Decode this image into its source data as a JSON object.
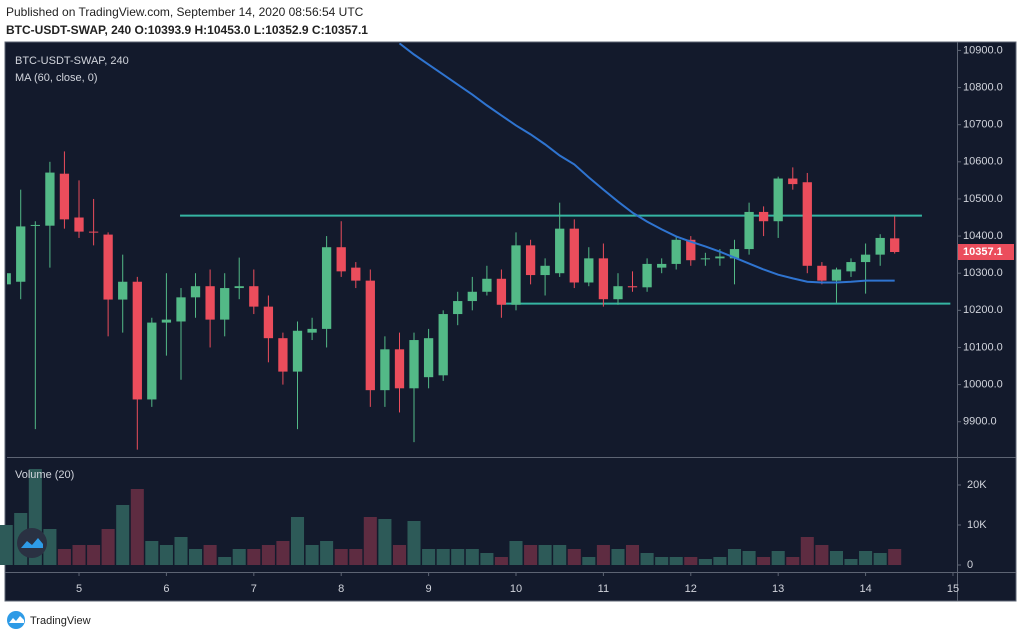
{
  "header": {
    "published": "Published on TradingView.com, September 14, 2020 08:56:54 UTC",
    "symbol_line": "BTC-USDT-SWAP, 240 O:10393.9 H:10453.0 L:10352.9 C:10357.1"
  },
  "chart_data": {
    "type": "candlestick",
    "title": "BTC-USDT-SWAP, 240",
    "x": [
      4.167,
      4.333,
      4.5,
      4.667,
      4.833,
      5,
      5.167,
      5.333,
      5.5,
      5.667,
      5.833,
      6,
      6.167,
      6.333,
      6.5,
      6.667,
      6.833,
      7,
      7.167,
      7.333,
      7.5,
      7.667,
      7.833,
      8,
      8.167,
      8.333,
      8.5,
      8.667,
      8.833,
      9,
      9.167,
      9.333,
      9.5,
      9.667,
      9.833,
      10,
      10.167,
      10.333,
      10.5,
      10.667,
      10.833,
      11,
      11.167,
      11.333,
      11.5,
      11.667,
      11.833,
      12,
      12.167,
      12.333,
      12.5,
      12.667,
      12.833,
      13,
      13.167,
      13.333,
      13.5,
      13.667,
      13.833,
      14,
      14.167,
      14.333
    ],
    "open": [
      10270,
      10277,
      10428,
      10428,
      10568,
      10450,
      10412,
      10404,
      10229,
      10277,
      9960,
      10167,
      10170,
      10235,
      10265,
      10175,
      10260,
      10265,
      10210,
      10125,
      10035,
      10140,
      10150,
      10370,
      10315,
      10280,
      9985,
      10095,
      9990,
      10020,
      10025,
      10190,
      10225,
      10250,
      10285,
      10215,
      10375,
      10295,
      10300,
      10420,
      10275,
      10340,
      10230,
      10265,
      10262,
      10315,
      10325,
      10390,
      10338,
      10340,
      10340,
      10365,
      10465,
      10440,
      10555,
      10545,
      10320,
      10280,
      10305,
      10330,
      10350,
      10393.9
    ],
    "high": [
      10310,
      10525,
      10440,
      10600,
      10628,
      10550,
      10500,
      10410,
      10350,
      10290,
      10180,
      10300,
      10260,
      10300,
      10310,
      10300,
      10342,
      10310,
      10240,
      10140,
      10170,
      10180,
      10400,
      10440,
      10330,
      10310,
      10130,
      10140,
      10140,
      10150,
      10200,
      10250,
      10290,
      10320,
      10310,
      10410,
      10390,
      10340,
      10490,
      10445,
      10370,
      10380,
      10300,
      10305,
      10340,
      10340,
      10400,
      10400,
      10355,
      10365,
      10390,
      10490,
      10480,
      10560,
      10585,
      10570,
      10330,
      10315,
      10340,
      10380,
      10405,
      10453.0
    ],
    "low": [
      10260,
      10230,
      9880,
      10315,
      10420,
      10395,
      10375,
      10130,
      10140,
      9825,
      9940,
      10078,
      10013,
      10180,
      10100,
      10130,
      10230,
      10190,
      10060,
      10000,
      9880,
      10120,
      10100,
      10290,
      10260,
      9940,
      9940,
      9925,
      9845,
      9990,
      10010,
      10160,
      10200,
      10240,
      10180,
      10200,
      10270,
      10240,
      10290,
      10260,
      10265,
      10210,
      10215,
      10250,
      10250,
      10300,
      10310,
      10320,
      10320,
      10320,
      10270,
      10350,
      10400,
      10395,
      10525,
      10300,
      10270,
      10220,
      10290,
      10245,
      10320,
      10352.9
    ],
    "close": [
      10300,
      10426,
      10430,
      10571,
      10445,
      10412,
      10410,
      10229,
      10277,
      9960,
      10167,
      10175,
      10235,
      10265,
      10175,
      10260,
      10265,
      10210,
      10125,
      10035,
      10145,
      10150,
      10370,
      10305,
      10280,
      9985,
      10095,
      9990,
      10120,
      10125,
      10190,
      10225,
      10250,
      10285,
      10215,
      10375,
      10295,
      10320,
      10420,
      10275,
      10340,
      10230,
      10265,
      10262,
      10325,
      10325,
      10390,
      10335,
      10340,
      10345,
      10365,
      10465,
      10440,
      10555,
      10540,
      10320,
      10280,
      10310,
      10330,
      10350,
      10395,
      10357.1
    ],
    "up_color": "#53b987",
    "down_color": "#eb4d5c",
    "xlim": [
      4.176,
      15.046
    ],
    "xticks": [
      5,
      6,
      7,
      8,
      9,
      10,
      11,
      12,
      13,
      14,
      15
    ],
    "ylim": [
      9805,
      10920
    ],
    "yticks": [
      {
        "value": 9900,
        "label": "9900.0"
      },
      {
        "value": 10000,
        "label": "10000.0"
      },
      {
        "value": 10100,
        "label": "10100.0"
      },
      {
        "value": 10200,
        "label": "10200.0"
      },
      {
        "value": 10300,
        "label": "10300.0"
      },
      {
        "value": 10400,
        "label": "10400.0"
      },
      {
        "value": 10500,
        "label": "10500.0"
      },
      {
        "value": 10600,
        "label": "10600.0"
      },
      {
        "value": 10700,
        "label": "10700.0"
      },
      {
        "value": 10800,
        "label": "10800.0"
      },
      {
        "value": 10900,
        "label": "10900.0"
      }
    ],
    "grid": false,
    "overlay": {
      "name": "MA (60, close, 0)",
      "color": "#2f74d0",
      "values": [
        null,
        null,
        null,
        null,
        null,
        null,
        null,
        null,
        null,
        null,
        null,
        null,
        null,
        null,
        null,
        null,
        null,
        null,
        null,
        null,
        null,
        null,
        null,
        null,
        null,
        null,
        null,
        10919,
        10889,
        10862,
        10835,
        10808,
        10781,
        10752,
        10725,
        10698,
        10674,
        10647,
        10617,
        10593,
        10558,
        10525,
        10493,
        10463,
        10439,
        10418,
        10399,
        10385,
        10372,
        10358,
        10342,
        10326,
        10310,
        10296,
        10286,
        10277,
        10275,
        10275,
        10277,
        10280,
        10280,
        10280
      ]
    },
    "levels": [
      {
        "value": 10455,
        "x": [
          6.156,
          14.645
        ],
        "color": "#35b5a2"
      },
      {
        "value": 10218,
        "x": [
          9.85,
          14.97
        ],
        "color": "#35b5a2"
      }
    ],
    "volume": {
      "title": "Volume (20)",
      "up_color": "#2d5a58",
      "down_color": "#5e2c41",
      "values": [
        10000,
        13000,
        24000,
        9000,
        4000,
        5000,
        5000,
        9000,
        15000,
        19000,
        6000,
        5000,
        7000,
        4000,
        5000,
        2000,
        4000,
        4000,
        5000,
        6000,
        12000,
        5000,
        6000,
        4000,
        4000,
        12000,
        11500,
        5000,
        11000,
        4000,
        4000,
        4000,
        4000,
        3000,
        2000,
        6000,
        5000,
        5000,
        5000,
        4000,
        2000,
        5000,
        4000,
        5000,
        3000,
        2000,
        2000,
        2000,
        1500,
        2000,
        4000,
        3500,
        2000,
        3500,
        2000,
        7000,
        5000,
        3500,
        1500,
        3500,
        3000,
        4000
      ],
      "ylim": [
        -1750,
        26750
      ],
      "yticks": [
        {
          "value": 20000,
          "label": "20K"
        },
        {
          "value": 10000,
          "label": "10K"
        },
        0
      ]
    }
  },
  "footer": {
    "brand": "TradingView"
  }
}
